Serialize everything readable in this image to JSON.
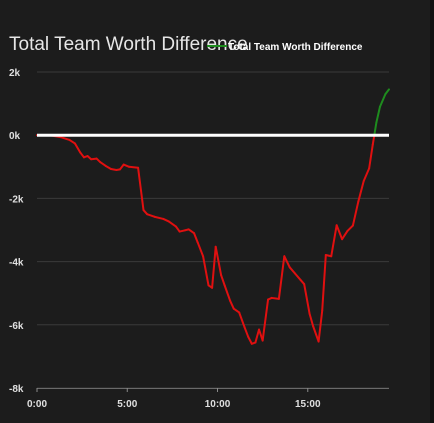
{
  "chart_data": {
    "type": "line",
    "title": "Total Team Worth Difference",
    "legend": {
      "placement": "top-right",
      "entries": [
        {
          "label": "Total Team Worth Difference",
          "color": "#1e8c1e"
        }
      ]
    },
    "xlabel": "",
    "ylabel": "",
    "xlim": [
      0,
      19.5
    ],
    "ylim": [
      -8000,
      2000
    ],
    "x_ticks": [
      {
        "value": 0,
        "label": "0:00"
      },
      {
        "value": 5,
        "label": "5:00"
      },
      {
        "value": 10,
        "label": "10:00"
      },
      {
        "value": 15,
        "label": "15:00"
      }
    ],
    "y_ticks": [
      {
        "value": 2000,
        "label": "2k"
      },
      {
        "value": 0,
        "label": "0k"
      },
      {
        "value": -2000,
        "label": "-2k"
      },
      {
        "value": -4000,
        "label": "-4k"
      },
      {
        "value": -6000,
        "label": "-6k"
      },
      {
        "value": -8000,
        "label": "-8k"
      }
    ],
    "grid": true,
    "zero_line": true,
    "positive_color": "#1e8c1e",
    "negative_color": "#e01010",
    "series": [
      {
        "name": "Total Team Worth Difference",
        "points": [
          [
            0.0,
            0
          ],
          [
            0.8,
            -10
          ],
          [
            1.3,
            -60
          ],
          [
            1.8,
            -150
          ],
          [
            2.1,
            -260
          ],
          [
            2.4,
            -550
          ],
          [
            2.6,
            -700
          ],
          [
            2.8,
            -660
          ],
          [
            3.0,
            -760
          ],
          [
            3.3,
            -740
          ],
          [
            3.5,
            -850
          ],
          [
            3.8,
            -970
          ],
          [
            4.1,
            -1070
          ],
          [
            4.4,
            -1100
          ],
          [
            4.6,
            -1080
          ],
          [
            4.8,
            -930
          ],
          [
            5.1,
            -1000
          ],
          [
            5.6,
            -1030
          ],
          [
            5.9,
            -2370
          ],
          [
            6.1,
            -2500
          ],
          [
            6.5,
            -2580
          ],
          [
            7.0,
            -2650
          ],
          [
            7.3,
            -2730
          ],
          [
            7.7,
            -2890
          ],
          [
            7.9,
            -3050
          ],
          [
            8.2,
            -3010
          ],
          [
            8.4,
            -2980
          ],
          [
            8.7,
            -3100
          ],
          [
            8.9,
            -3390
          ],
          [
            9.2,
            -3830
          ],
          [
            9.5,
            -4750
          ],
          [
            9.7,
            -4830
          ],
          [
            9.9,
            -3530
          ],
          [
            10.2,
            -4430
          ],
          [
            10.4,
            -4760
          ],
          [
            10.7,
            -5240
          ],
          [
            10.9,
            -5490
          ],
          [
            11.2,
            -5610
          ],
          [
            11.5,
            -6080
          ],
          [
            11.7,
            -6380
          ],
          [
            11.9,
            -6600
          ],
          [
            12.1,
            -6560
          ],
          [
            12.3,
            -6150
          ],
          [
            12.5,
            -6500
          ],
          [
            12.8,
            -5200
          ],
          [
            13.0,
            -5150
          ],
          [
            13.4,
            -5180
          ],
          [
            13.7,
            -3830
          ],
          [
            14.0,
            -4180
          ],
          [
            14.3,
            -4380
          ],
          [
            14.6,
            -4580
          ],
          [
            14.8,
            -4710
          ],
          [
            15.1,
            -5650
          ],
          [
            15.3,
            -6050
          ],
          [
            15.6,
            -6530
          ],
          [
            15.8,
            -5550
          ],
          [
            16.0,
            -3790
          ],
          [
            16.3,
            -3830
          ],
          [
            16.6,
            -2850
          ],
          [
            16.9,
            -3290
          ],
          [
            17.2,
            -3030
          ],
          [
            17.5,
            -2860
          ],
          [
            17.8,
            -2100
          ],
          [
            18.1,
            -1450
          ],
          [
            18.4,
            -1050
          ],
          [
            18.6,
            -300
          ],
          [
            18.8,
            400
          ],
          [
            19.0,
            900
          ],
          [
            19.3,
            1300
          ],
          [
            19.5,
            1450
          ]
        ]
      }
    ]
  }
}
